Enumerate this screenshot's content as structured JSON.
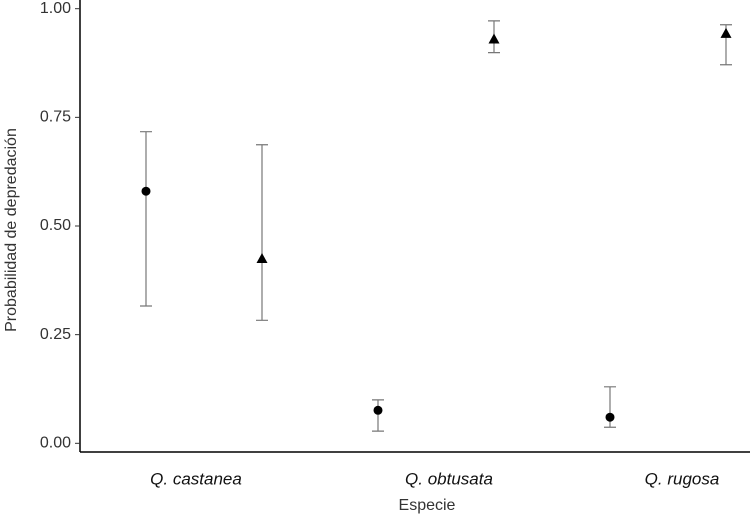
{
  "chart_data": {
    "type": "errorpoint",
    "x_label": "Especie",
    "y_label": "Probabilidad de depredación",
    "categories": [
      "Q. castanea",
      "Q. obtusata",
      "Q. rugosa"
    ],
    "series": [
      {
        "marker": "circle",
        "color": "#000000",
        "values": [
          0.58,
          0.076,
          0.06
        ],
        "lower": [
          0.316,
          0.028,
          0.037
        ],
        "upper": [
          0.717,
          0.1,
          0.13
        ]
      },
      {
        "marker": "triangle",
        "color": "#000000",
        "values": [
          0.424,
          0.929,
          0.942
        ],
        "lower": [
          0.283,
          0.899,
          0.871
        ],
        "upper": [
          0.687,
          0.972,
          0.963
        ]
      }
    ],
    "ylim": [
      -0.02,
      1.02
    ],
    "yticks": [
      {
        "value": 0,
        "label": "0.00"
      },
      {
        "value": 0.25,
        "label": "0.25"
      },
      {
        "value": 0.5,
        "label": "0.50"
      },
      {
        "value": 0.75,
        "label": "0.75"
      },
      {
        "value": 1,
        "label": "1.00"
      }
    ],
    "grid": false
  }
}
